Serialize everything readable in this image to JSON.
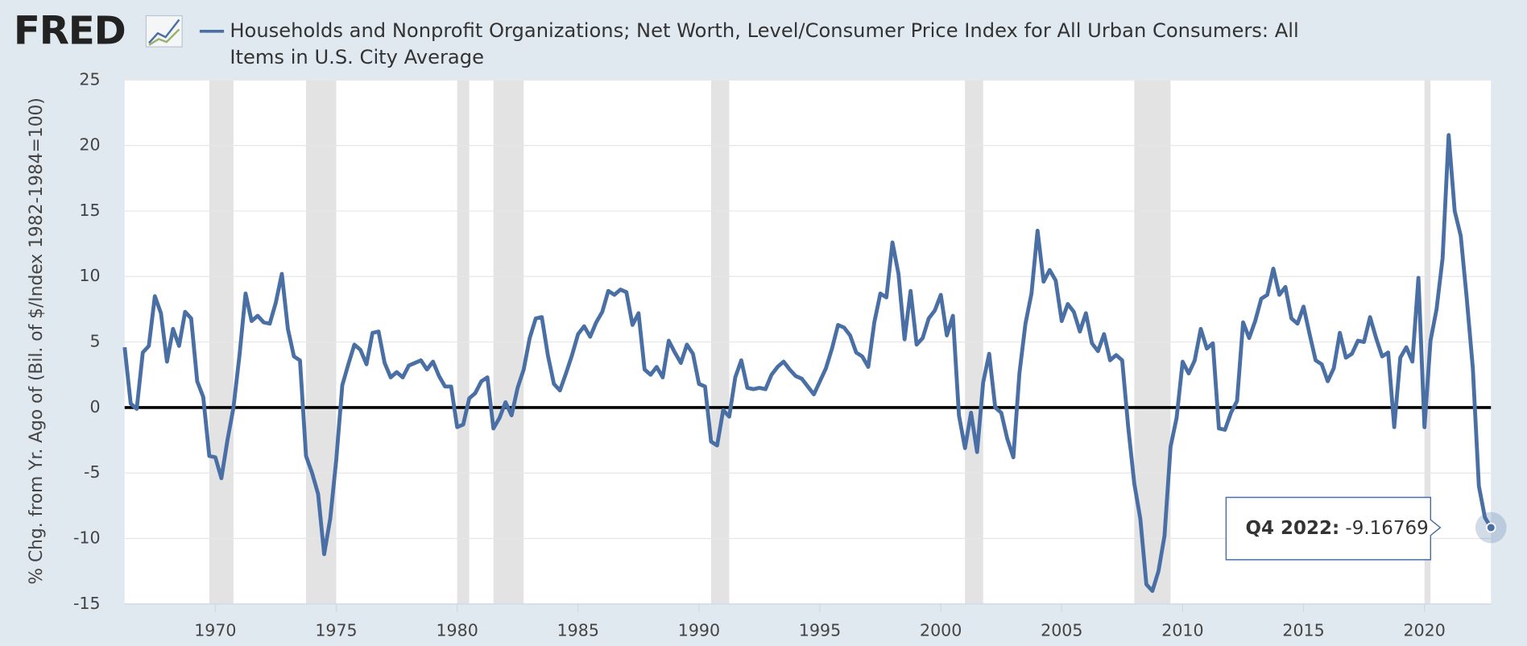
{
  "logo": "FRED",
  "chart_data": {
    "type": "line",
    "title": "Households and Nonprofit Organizations; Net Worth, Level/Consumer Price Index for All Urban Consumers: All Items in U.S. City Average",
    "y_label": "% Chg. from Yr. Ago of (Bil. of $/Index 1982-1984=100)",
    "xlim": [
      1966.25,
      2022.75
    ],
    "xticks": [
      1970,
      1975,
      1980,
      1985,
      1990,
      1995,
      2000,
      2005,
      2010,
      2015,
      2020
    ],
    "ylim": [
      -15,
      25
    ],
    "yticks": [
      -15,
      -10,
      -5,
      0,
      5,
      10,
      15,
      20,
      25
    ],
    "grid": true,
    "recessions": [
      [
        1969.75,
        1970.75
      ],
      [
        1973.75,
        1975
      ],
      [
        1980,
        1980.5
      ],
      [
        1981.5,
        1982.75
      ],
      [
        1990.5,
        1991.25
      ],
      [
        2001,
        2001.75
      ],
      [
        2008,
        2009.5
      ],
      [
        2020,
        2020.25
      ]
    ],
    "tooltip_label": "Q4 2022:",
    "tooltip_index": 226,
    "series": [
      {
        "name": "Households and Nonprofit Organizations; Net Worth, Level/Consumer Price Index for All Urban Consumers: All Items in U.S. City Average",
        "color": "#4a6fa5",
        "x": [
          1966.25,
          1966.5,
          1966.75,
          1967,
          1967.25,
          1967.5,
          1967.75,
          1968,
          1968.25,
          1968.5,
          1968.75,
          1969,
          1969.25,
          1969.5,
          1969.75,
          1970,
          1970.25,
          1970.5,
          1970.75,
          1971,
          1971.25,
          1971.5,
          1971.75,
          1972,
          1972.25,
          1972.5,
          1972.75,
          1973,
          1973.25,
          1973.5,
          1973.75,
          1974,
          1974.25,
          1974.5,
          1974.75,
          1975,
          1975.25,
          1975.5,
          1975.75,
          1976,
          1976.25,
          1976.5,
          1976.75,
          1977,
          1977.25,
          1977.5,
          1977.75,
          1978,
          1978.25,
          1978.5,
          1978.75,
          1979,
          1979.25,
          1979.5,
          1979.75,
          1980,
          1980.25,
          1980.5,
          1980.75,
          1981,
          1981.25,
          1981.5,
          1981.75,
          1982,
          1982.25,
          1982.5,
          1982.75,
          1983,
          1983.25,
          1983.5,
          1983.75,
          1984,
          1984.25,
          1984.5,
          1984.75,
          1985,
          1985.25,
          1985.5,
          1985.75,
          1986,
          1986.25,
          1986.5,
          1986.75,
          1987,
          1987.25,
          1987.5,
          1987.75,
          1988,
          1988.25,
          1988.5,
          1988.75,
          1989,
          1989.25,
          1989.5,
          1989.75,
          1990,
          1990.25,
          1990.5,
          1990.75,
          1991,
          1991.25,
          1991.5,
          1991.75,
          1992,
          1992.25,
          1992.5,
          1992.75,
          1993,
          1993.25,
          1993.5,
          1993.75,
          1994,
          1994.25,
          1994.5,
          1994.75,
          1995,
          1995.25,
          1995.5,
          1995.75,
          1996,
          1996.25,
          1996.5,
          1996.75,
          1997,
          1997.25,
          1997.5,
          1997.75,
          1998,
          1998.25,
          1998.5,
          1998.75,
          1999,
          1999.25,
          1999.5,
          1999.75,
          2000,
          2000.25,
          2000.5,
          2000.75,
          2001,
          2001.25,
          2001.5,
          2001.75,
          2002,
          2002.25,
          2002.5,
          2002.75,
          2003,
          2003.25,
          2003.5,
          2003.75,
          2004,
          2004.25,
          2004.5,
          2004.75,
          2005,
          2005.25,
          2005.5,
          2005.75,
          2006,
          2006.25,
          2006.5,
          2006.75,
          2007,
          2007.25,
          2007.5,
          2007.75,
          2008,
          2008.25,
          2008.5,
          2008.75,
          2009,
          2009.25,
          2009.5,
          2009.75,
          2010,
          2010.25,
          2010.5,
          2010.75,
          2011,
          2011.25,
          2011.5,
          2011.75,
          2012,
          2012.25,
          2012.5,
          2012.75,
          2013,
          2013.25,
          2013.5,
          2013.75,
          2014,
          2014.25,
          2014.5,
          2014.75,
          2015,
          2015.25,
          2015.5,
          2015.75,
          2016,
          2016.25,
          2016.5,
          2016.75,
          2017,
          2017.25,
          2017.5,
          2017.75,
          2018,
          2018.25,
          2018.5,
          2018.75,
          2019,
          2019.25,
          2019.5,
          2019.75,
          2020,
          2020.25,
          2020.5,
          2020.75,
          2021,
          2021.25,
          2021.5,
          2021.75,
          2022,
          2022.25,
          2022.5,
          2022.75
        ],
        "values": [
          4.6,
          0.3,
          -0.1,
          4.2,
          4.7,
          8.5,
          7.2,
          3.5,
          6.0,
          4.7,
          7.3,
          6.8,
          2.0,
          0.8,
          -3.7,
          -3.8,
          -5.4,
          -2.5,
          0.0,
          4.0,
          8.7,
          6.6,
          7.0,
          6.5,
          6.4,
          8.0,
          10.2,
          6.0,
          3.9,
          3.6,
          -3.7,
          -5.0,
          -6.6,
          -11.2,
          -8.5,
          -4.0,
          1.7,
          3.3,
          4.8,
          4.4,
          3.3,
          5.7,
          5.8,
          3.4,
          2.3,
          2.7,
          2.3,
          3.2,
          3.4,
          3.6,
          2.9,
          3.5,
          2.4,
          1.6,
          1.6,
          -1.5,
          -1.3,
          0.7,
          1.1,
          2.0,
          2.3,
          -1.6,
          -0.8,
          0.4,
          -0.6,
          1.5,
          2.9,
          5.3,
          6.8,
          6.9,
          4.0,
          1.8,
          1.3,
          2.6,
          4.0,
          5.6,
          6.2,
          5.4,
          6.5,
          7.3,
          8.9,
          8.6,
          9.0,
          8.8,
          6.3,
          7.2,
          2.9,
          2.5,
          3.1,
          2.3,
          5.1,
          4.2,
          3.4,
          4.8,
          4.1,
          1.8,
          1.6,
          -2.6,
          -2.9,
          -0.2,
          -0.7,
          2.3,
          3.6,
          1.5,
          1.4,
          1.5,
          1.4,
          2.5,
          3.1,
          3.5,
          2.9,
          2.4,
          2.2,
          1.6,
          1.0,
          2.0,
          3.0,
          4.5,
          6.3,
          6.1,
          5.5,
          4.2,
          3.9,
          3.1,
          6.5,
          8.7,
          8.4,
          12.6,
          10.2,
          5.2,
          8.9,
          4.8,
          5.3,
          6.8,
          7.4,
          8.6,
          5.5,
          7.0,
          -0.6,
          -3.1,
          -0.4,
          -3.4,
          1.9,
          4.1,
          0.0,
          -0.4,
          -2.4,
          -3.8,
          2.6,
          6.4,
          8.7,
          13.5,
          9.6,
          10.5,
          9.7,
          6.6,
          7.9,
          7.3,
          5.8,
          7.2,
          4.9,
          4.3,
          5.6,
          3.6,
          4.0,
          3.6,
          -1.5,
          -5.8,
          -8.5,
          -13.5,
          -14.0,
          -12.5,
          -9.8,
          -3.0,
          -0.8,
          3.5,
          2.6,
          3.6,
          6.0,
          4.5,
          4.9,
          -1.6,
          -1.7,
          -0.4,
          0.5,
          6.5,
          5.3,
          6.6,
          8.3,
          8.6,
          10.6,
          8.6,
          9.2,
          6.8,
          6.4,
          7.7,
          5.6,
          3.6,
          3.3,
          2.0,
          3.0,
          5.7,
          3.8,
          4.1,
          5.1,
          5.0,
          6.9,
          5.3,
          3.9,
          4.2,
          -1.5,
          3.8,
          4.6,
          3.5,
          9.9,
          -1.5,
          5.1,
          7.5,
          11.4,
          20.8,
          15.0,
          13.1,
          8.3,
          3.0,
          -6.0,
          -8.4,
          -9.16769
        ]
      }
    ]
  }
}
